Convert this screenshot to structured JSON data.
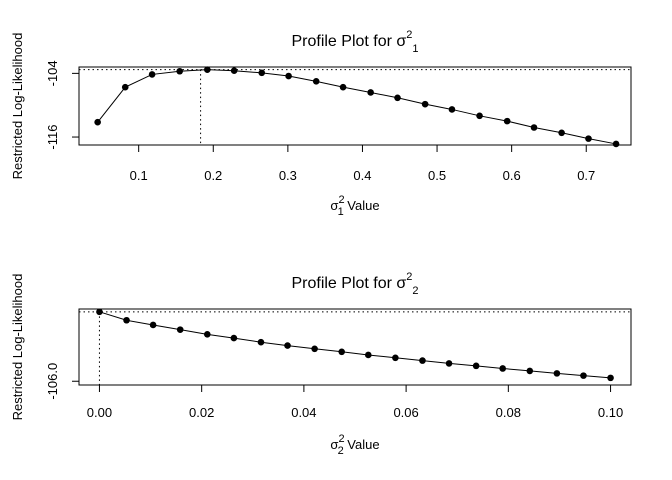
{
  "chart_data": [
    {
      "type": "line",
      "title": "Profile Plot for σ",
      "title_sup": "2",
      "title_sub": "1",
      "xlabel": "σ",
      "xlabel_sup": "2",
      "xlabel_sub": "1",
      "xlabel_suffix": " Value",
      "ylabel": "Restricted Log-Likelihood",
      "xlim": [
        0.02,
        0.76
      ],
      "ylim": [
        -117.5,
        -102.8
      ],
      "xticks": [
        0.1,
        0.2,
        0.3,
        0.4,
        0.5,
        0.6,
        0.7
      ],
      "xtick_labels": [
        "0.1",
        "0.2",
        "0.3",
        "0.4",
        "0.5",
        "0.6",
        "0.7"
      ],
      "yticks": [
        -116,
        -104
      ],
      "ytick_labels": [
        "-116",
        "-104"
      ],
      "x": [
        0.045,
        0.082,
        0.118,
        0.155,
        0.192,
        0.228,
        0.265,
        0.301,
        0.338,
        0.374,
        0.411,
        0.447,
        0.484,
        0.52,
        0.557,
        0.594,
        0.63,
        0.667,
        0.703,
        0.74
      ],
      "y": [
        -113.2,
        -106.6,
        -104.2,
        -103.6,
        -103.3,
        -103.5,
        -103.9,
        -104.5,
        -105.5,
        -106.6,
        -107.6,
        -108.6,
        -109.8,
        -110.8,
        -112.0,
        -113.0,
        -114.2,
        -115.2,
        -116.3,
        -117.3
      ],
      "max_x": 0.183,
      "max_y": -103.3,
      "grid": false
    },
    {
      "type": "line",
      "title": "Profile Plot for σ",
      "title_sup": "2",
      "title_sub": "2",
      "xlabel": "σ",
      "xlabel_sup": "2",
      "xlabel_sub": "2",
      "xlabel_suffix": " Value",
      "ylabel": "Restricted Log-Likelihood",
      "xlim": [
        -0.004,
        0.104
      ],
      "ylim": [
        -106.2,
        -102.15
      ],
      "xticks": [
        0.0,
        0.02,
        0.04,
        0.06,
        0.08,
        0.1
      ],
      "xtick_labels": [
        "0.00",
        "0.02",
        "0.04",
        "0.06",
        "0.08",
        "0.10"
      ],
      "yticks": [
        -106.0
      ],
      "ytick_labels": [
        "-106.0"
      ],
      "x": [
        0.0,
        0.0053,
        0.0105,
        0.0158,
        0.0211,
        0.0263,
        0.0316,
        0.0368,
        0.0421,
        0.0474,
        0.0526,
        0.0579,
        0.0632,
        0.0684,
        0.0737,
        0.0789,
        0.0842,
        0.0895,
        0.0947,
        0.1
      ],
      "y": [
        -102.3,
        -102.75,
        -103.0,
        -103.25,
        -103.5,
        -103.7,
        -103.92,
        -104.1,
        -104.27,
        -104.43,
        -104.6,
        -104.75,
        -104.9,
        -105.05,
        -105.18,
        -105.32,
        -105.45,
        -105.58,
        -105.7,
        -105.82
      ],
      "max_x": 0.0,
      "max_y": -102.3,
      "grid": false
    }
  ]
}
